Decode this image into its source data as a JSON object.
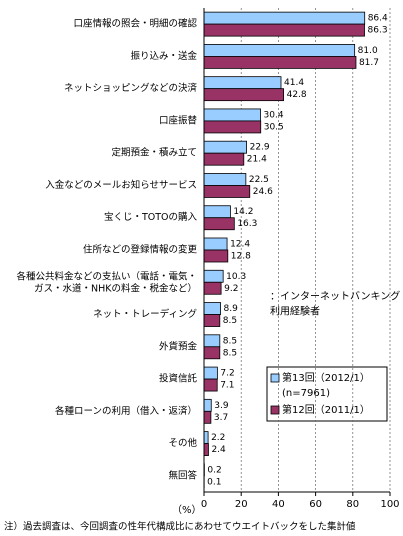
{
  "chart_data": {
    "type": "barh",
    "categories": [
      "口座情報の照会・明細の確認",
      "振り込み・送金",
      "ネットショッピングなどの決済",
      "口座振替",
      "定期預金・積み立て",
      "入金などのメールお知らせサービス",
      "宝くじ・TOTOの購入",
      "住所などの登録情報の変更",
      "各種公共料金などの支払い（電話・電気・\nガス・水道・NHKの料金・税金など）",
      "ネット・トレーディング",
      "外貨預金",
      "投資信託",
      "各種ローンの利用（借入・返済）",
      "その他",
      "無回答"
    ],
    "series": [
      {
        "name": "第13回（2012/1）",
        "note": "(n=7961)",
        "color": "#99ccff",
        "values": [
          86.4,
          81.0,
          41.4,
          30.4,
          22.9,
          22.5,
          14.2,
          12.4,
          10.3,
          8.9,
          8.5,
          7.2,
          3.9,
          2.2,
          0.2
        ],
        "value_labels": [
          "86.4",
          "81.0",
          "41.4",
          "30.4",
          "22.9",
          "22.5",
          "14.2",
          "12.4",
          "10.3",
          "8.9",
          "8.5",
          "7.2",
          "3.9",
          "2.2",
          "0.2"
        ]
      },
      {
        "name": "第12回（2011/1）",
        "color": "#993366",
        "values": [
          86.3,
          81.7,
          42.8,
          30.5,
          21.4,
          24.6,
          16.3,
          12.8,
          9.2,
          8.5,
          8.5,
          7.1,
          3.7,
          2.4,
          0.1
        ],
        "value_labels": [
          "86.3",
          "81.7",
          "42.8",
          "30.5",
          "21.4",
          "24.6",
          "16.3",
          "12.8",
          "9.2",
          "8.5",
          "8.5",
          "7.1",
          "3.7",
          "2.4",
          "0.1"
        ]
      }
    ],
    "xlim": [
      0,
      100
    ],
    "xticks": [
      0,
      20,
      40,
      60,
      80,
      100
    ],
    "grid": true,
    "x_unit": "（%）",
    "annotation": "：インターネットバンキング\n利用経験者",
    "footnote": "注）過去調査は、今回調査の性年代構成比にあわせてウエイトバックをした集計値"
  }
}
